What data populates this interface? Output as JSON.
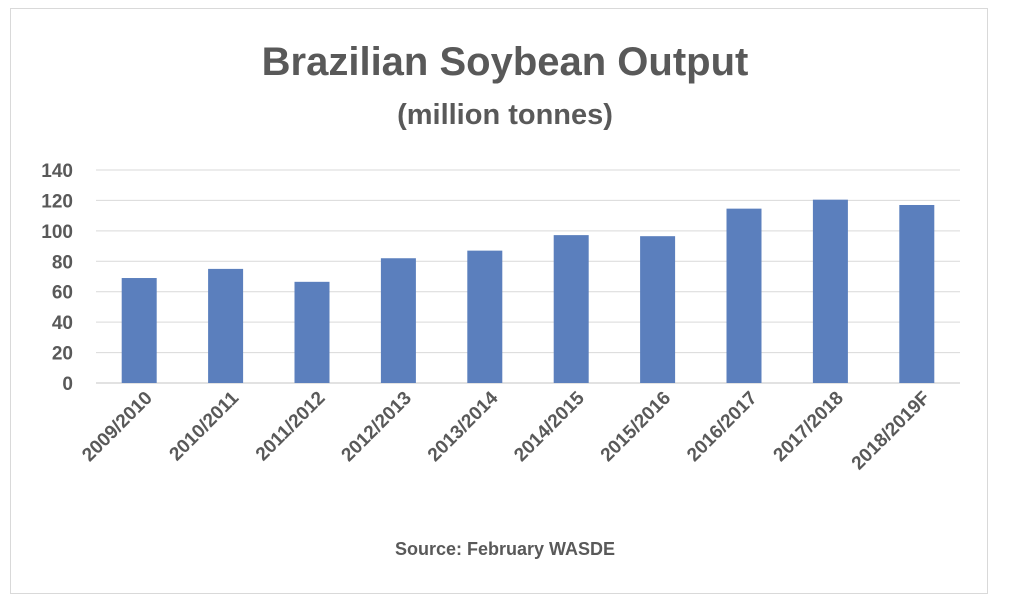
{
  "chart_data": {
    "type": "bar",
    "title": "Brazilian Soybean Output",
    "subtitle": "(million tonnes)",
    "source": "Source: February WASDE",
    "categories": [
      "2009/2010",
      "2010/2011",
      "2011/2012",
      "2012/2013",
      "2013/2014",
      "2014/2015",
      "2015/2016",
      "2016/2017",
      "2017/2018",
      "2018/2019F"
    ],
    "values": [
      69,
      75,
      66.5,
      82,
      87,
      97.2,
      96.5,
      114.6,
      120.5,
      117
    ],
    "ylim": [
      0,
      140
    ],
    "yticks": [
      0,
      20,
      40,
      60,
      80,
      100,
      120,
      140
    ],
    "grid": true,
    "legend": "none",
    "colors": {
      "bar": "#5b7fbd",
      "grid": "#d9d9d9",
      "text": "#595959"
    }
  }
}
